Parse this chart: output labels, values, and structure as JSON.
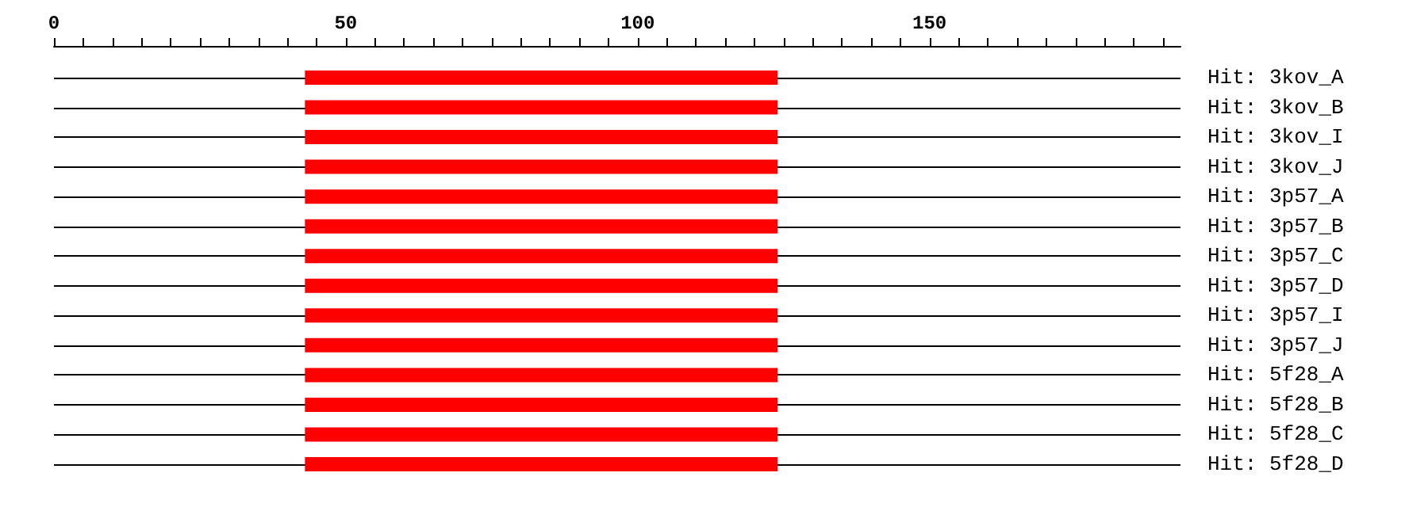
{
  "chart_data": {
    "type": "bar",
    "orientation": "horizontal",
    "categories": [
      "Hit: 3kov_A",
      "Hit: 3kov_B",
      "Hit: 3kov_I",
      "Hit: 3kov_J",
      "Hit: 3p57_A",
      "Hit: 3p57_B",
      "Hit: 3p57_C",
      "Hit: 3p57_D",
      "Hit: 3p57_I",
      "Hit: 3p57_J",
      "Hit: 5f28_A",
      "Hit: 5f28_B",
      "Hit: 5f28_C",
      "Hit: 5f28_D"
    ],
    "base": [
      43,
      43,
      43,
      43,
      43,
      43,
      43,
      43,
      43,
      43,
      43,
      43,
      43,
      43
    ],
    "values": [
      81,
      81,
      81,
      81,
      81,
      81,
      81,
      81,
      81,
      81,
      81,
      81,
      81,
      81
    ],
    "color": "#ff0000",
    "xlim": [
      0,
      193
    ],
    "xticks": [
      0,
      50,
      100,
      150
    ],
    "grid": "y"
  }
}
